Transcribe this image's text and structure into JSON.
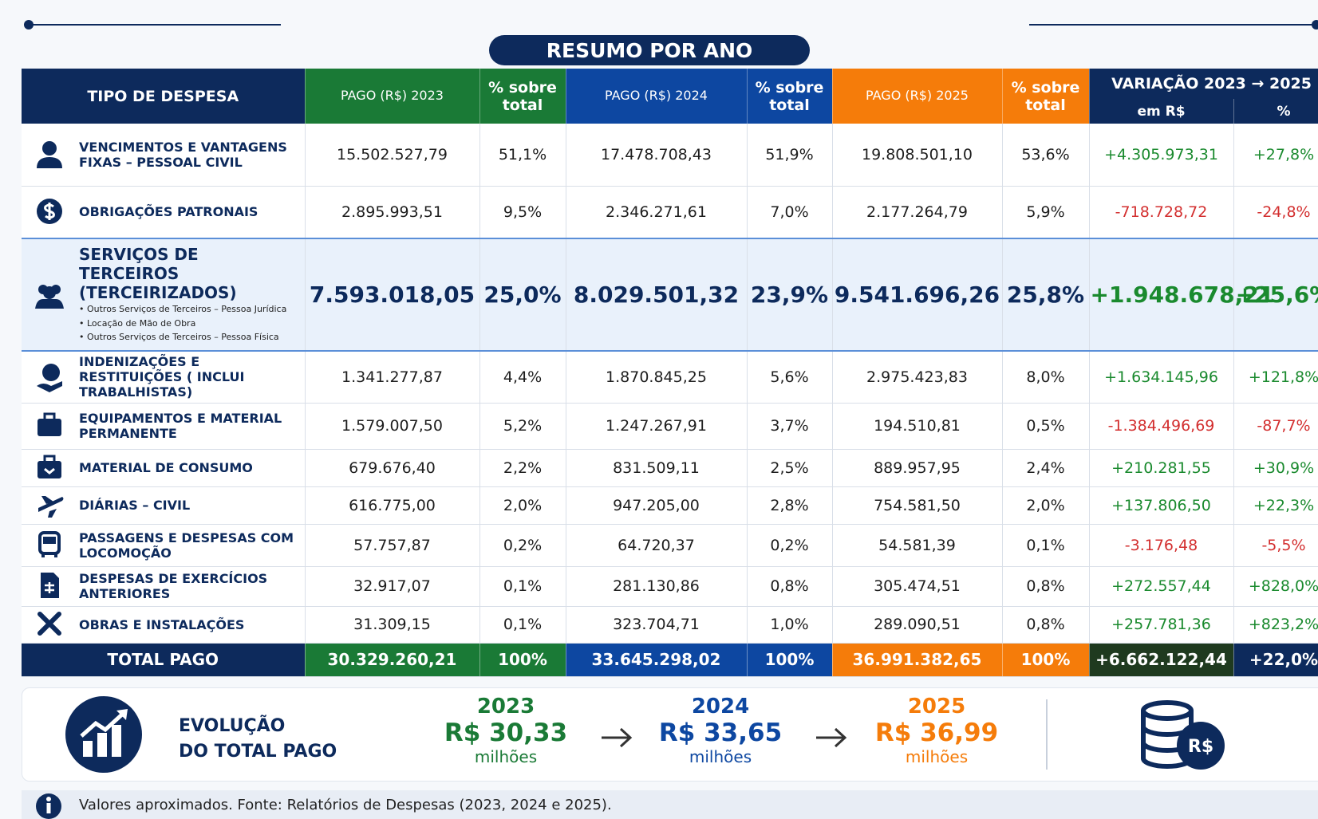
{
  "title": "RESUMO POR ANO",
  "table": {
    "headers": [
      "TIPO DE DESPESA",
      "PAGO (R$) 2023",
      "% sobre total",
      "PAGO (R$) 2024",
      "% sobre total",
      "PAGO (R$) 2025",
      "% sobre total"
    ],
    "variation_header": {
      "title": "VARIAÇÃO 2023 → 2025",
      "sub": [
        "em R$",
        "%"
      ]
    },
    "rows": [
      {
        "name": "VENCIMENTOS E VANTAGENS FIXAS – PESSOAL CIVIL",
        "cells": [
          "15.502.527,79",
          "51,1%",
          "17.478.708,43",
          "51,9%",
          "19.808.501,10",
          "53,6%",
          "+4.305.973,31",
          "+27,8%"
        ]
      },
      {
        "name": "OBRIGAÇÕES PATRONAIS",
        "cells": [
          "2.895.993,51",
          "9,5%",
          "2.346.271,61",
          "7,0%",
          "2.177.264,79",
          "5,9%",
          "-718.728,72",
          "-24,8%"
        ]
      },
      {
        "name": "SERVIÇOS DE TERCEIROS (TERCEIRIZADOS)",
        "details": [
          "• Outros Serviços de Terceiros – Pessoa Jurídica",
          "• Locação de Mão de Obra",
          "• Outros Serviços de Terceiros – Pessoa Física"
        ],
        "cells": [
          "7.593.018,05",
          "25,0%",
          "8.029.501,32",
          "23,9%",
          "9.541.696,26",
          "25,8%",
          "+1.948.678,21",
          "+25,6%"
        ]
      },
      {
        "name": "INDENIZAÇÕES E RESTITUIÇÕES ( INCLUI TRABALHISTAS)",
        "cells": [
          "1.341.277,87",
          "4,4%",
          "1.870.845,25",
          "5,6%",
          "2.975.423,83",
          "8,0%",
          "+1.634.145,96",
          "+121,8%"
        ]
      },
      {
        "name": "EQUIPAMENTOS E MATERIAL PERMANENTE",
        "cells": [
          "1.579.007,50",
          "5,2%",
          "1.247.267,91",
          "3,7%",
          "194.510,81",
          "0,5%",
          "-1.384.496,69",
          "-87,7%"
        ]
      },
      {
        "name": "MATERIAL DE CONSUMO",
        "cells": [
          "679.676,40",
          "2,2%",
          "831.509,11",
          "2,5%",
          "889.957,95",
          "2,4%",
          "+210.281,55",
          "+30,9%"
        ]
      },
      {
        "name": "DIÁRIAS – CIVIL",
        "cells": [
          "616.775,00",
          "2,0%",
          "947.205,00",
          "2,8%",
          "754.581,50",
          "2,0%",
          "+137.806,50",
          "+22,3%"
        ]
      },
      {
        "name": "PASSAGENS E DESPESAS COM LOCOMOÇÃO",
        "cells": [
          "57.757,87",
          "0,2%",
          "64.720,37",
          "0,2%",
          "54.581,39",
          "0,1%",
          "-3.176,48",
          "-5,5%"
        ]
      },
      {
        "name": "DESPESAS DE EXERCÍCIOS ANTERIORES",
        "cells": [
          "32.917,07",
          "0,1%",
          "281.130,86",
          "0,8%",
          "305.474,51",
          "0,8%",
          "+272.557,44",
          "+828,0%"
        ]
      },
      {
        "name": "OBRAS E INSTALAÇÕES",
        "cells": [
          "31.309,15",
          "0,1%",
          "323.704,71",
          "1,0%",
          "289.090,51",
          "0,8%",
          "+257.781,36",
          "+823,2%"
        ]
      }
    ],
    "total": {
      "label": "TOTAL PAGO",
      "cells": [
        "30.329.260,21",
        "100%",
        "33.645.298,02",
        "100%",
        "36.991.382,65",
        "100%",
        "+6.662.122,44",
        "+22,0%"
      ]
    }
  },
  "evolution": {
    "label": [
      "EVOLUÇÃO",
      "DO TOTAL PAGO"
    ],
    "years": [
      {
        "year": "2023",
        "amount": "R$ 30,33",
        "unit": "milhões"
      },
      {
        "year": "2024",
        "amount": "R$ 33,65",
        "unit": "milhões"
      },
      {
        "year": "2025",
        "amount": "R$ 36,99",
        "unit": "milhões"
      }
    ],
    "currency_icon_label": "R$"
  },
  "footnote": "Valores aproximados. Fonte: Relatórios de Despesas (2023, 2024 e 2025)."
}
